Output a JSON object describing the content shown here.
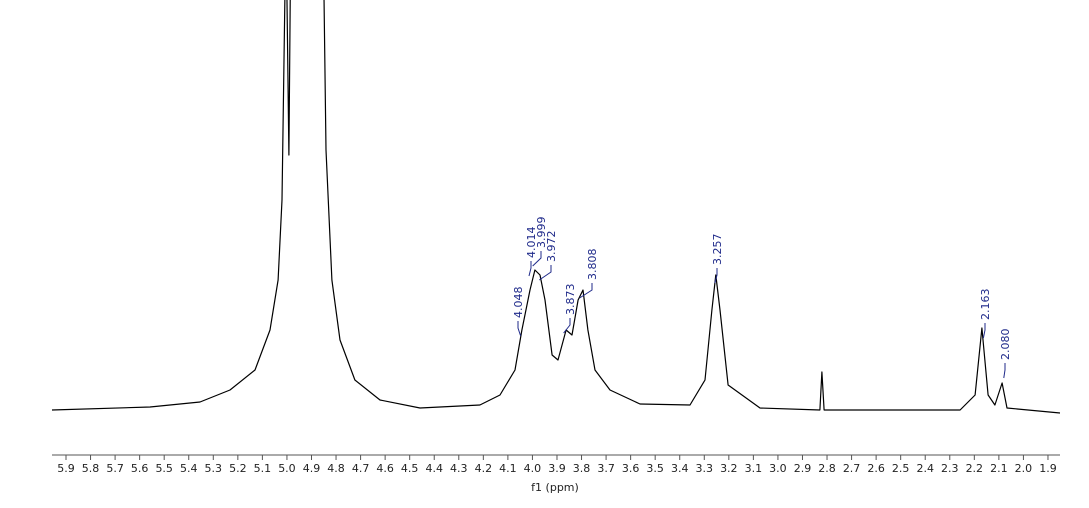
{
  "chart_data": {
    "type": "line",
    "xlabel": "f1 (ppm)",
    "xlim": [
      5.957,
      1.851
    ],
    "ylim": [
      0,
      420
    ],
    "xticks": [
      5.9,
      5.8,
      5.7,
      5.6,
      5.5,
      5.4,
      5.3,
      5.2,
      5.1,
      {
        "value": 5,
        "label": "5.0"
      },
      4.9,
      4.8,
      4.7,
      4.6,
      4.5,
      4.4,
      4.3,
      4.2,
      4.1,
      {
        "value": 4,
        "label": "4.0"
      },
      3.9,
      3.8,
      3.7,
      3.6,
      3.5,
      3.4,
      3.3,
      3.2,
      3.1,
      {
        "value": 3,
        "label": "3.0"
      },
      2.9,
      2.8,
      2.7,
      2.6,
      2.5,
      2.4,
      2.3,
      2.2,
      2.1,
      {
        "value": 2,
        "label": "2.0"
      },
      1.9
    ],
    "x": [
      5.957,
      5.558,
      5.354,
      5.232,
      5.13,
      5.069,
      5.036,
      5.02,
      5.004,
      4.992,
      4.984,
      4.853,
      4.841,
      4.817,
      4.784,
      4.723,
      4.621,
      4.458,
      4.214,
      4.132,
      4.071,
      4.043,
      4.01,
      3.99,
      3.969,
      3.949,
      3.92,
      3.896,
      3.863,
      3.839,
      3.814,
      3.794,
      3.774,
      3.745,
      3.684,
      3.562,
      3.358,
      3.297,
      3.269,
      3.253,
      3.236,
      3.203,
      3.073,
      2.829,
      2.821,
      2.812,
      2.258,
      2.197,
      2.169,
      2.144,
      2.116,
      2.087,
      2.067,
      1.851
    ],
    "series": [
      {
        "color": "#000000",
        "values": [
          10,
          13,
          18,
          30,
          50,
          90,
          140,
          220,
          500,
          265,
          500,
          500,
          270,
          140,
          80,
          40,
          20,
          12,
          15,
          25,
          50,
          90,
          130,
          150,
          145,
          120,
          65,
          60,
          90,
          85,
          120,
          130,
          90,
          50,
          30,
          16,
          15,
          40,
          110,
          145,
          110,
          35,
          12,
          10,
          48,
          10,
          10,
          25,
          92,
          25,
          15,
          37,
          12,
          7
        ]
      }
    ],
    "peak_labels": [
      4.048,
      4.014,
      3.999,
      3.972,
      3.873,
      3.808,
      3.257,
      2.163,
      {
        "value": 2.08,
        "label": "2.080"
      }
    ],
    "peak_label_color": "#1f2a8a"
  }
}
